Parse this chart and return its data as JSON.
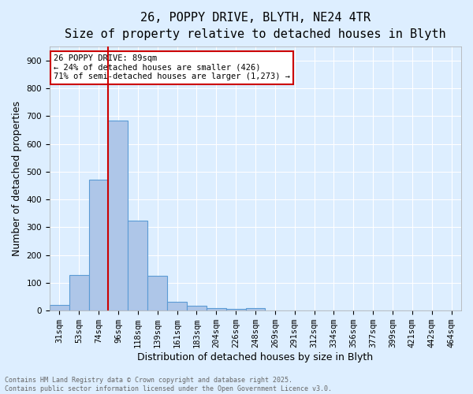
{
  "title_line1": "26, POPPY DRIVE, BLYTH, NE24 4TR",
  "title_line2": "Size of property relative to detached houses in Blyth",
  "xlabel": "Distribution of detached houses by size in Blyth",
  "ylabel": "Number of detached properties",
  "bar_labels": [
    "31sqm",
    "53sqm",
    "74sqm",
    "96sqm",
    "118sqm",
    "139sqm",
    "161sqm",
    "183sqm",
    "204sqm",
    "226sqm",
    "248sqm",
    "269sqm",
    "291sqm",
    "312sqm",
    "334sqm",
    "356sqm",
    "377sqm",
    "399sqm",
    "421sqm",
    "442sqm",
    "464sqm"
  ],
  "bar_heights": [
    20,
    128,
    470,
    685,
    323,
    125,
    33,
    18,
    10,
    5,
    9,
    0,
    0,
    0,
    0,
    0,
    0,
    0,
    0,
    0,
    0
  ],
  "bar_color": "#aec6e8",
  "bar_edge_color": "#5b9bd5",
  "vline_color": "#cc0000",
  "annotation_text": "26 POPPY DRIVE: 89sqm\n← 24% of detached houses are smaller (426)\n71% of semi-detached houses are larger (1,273) →",
  "annotation_box_color": "#ffffff",
  "annotation_box_edge_color": "#cc0000",
  "ylim": [
    0,
    950
  ],
  "yticks": [
    0,
    100,
    200,
    300,
    400,
    500,
    600,
    700,
    800,
    900
  ],
  "background_color": "#ddeeff",
  "plot_bg_color": "#ddeeff",
  "grid_color": "#ffffff",
  "footer_text": "Contains HM Land Registry data © Crown copyright and database right 2025.\nContains public sector information licensed under the Open Government Licence v3.0.",
  "title_fontsize": 11,
  "subtitle_fontsize": 10,
  "tick_fontsize": 7.5,
  "label_fontsize": 9,
  "annotation_fontsize": 7.5,
  "footer_fontsize": 6
}
